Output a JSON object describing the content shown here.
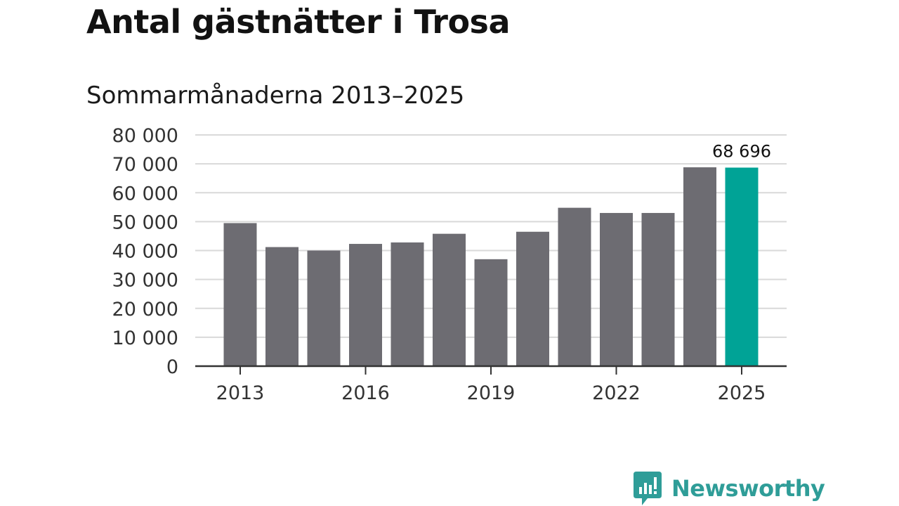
{
  "header": {
    "title": "Antal gästnätter i Trosa",
    "subtitle": "Sommarmånaderna 2013–2025"
  },
  "brand": {
    "name": "Newsworthy",
    "icon": "newsworthy-logo-icon",
    "color": "#2f9d98"
  },
  "colors": {
    "bar": "#6d6c72",
    "highlight": "#00a396",
    "grid": "#d9d9d9",
    "axis": "#333333"
  },
  "chart_data": {
    "type": "bar",
    "title": "Antal gästnätter i Trosa",
    "subtitle": "Sommarmånaderna 2013–2025",
    "categories": [
      "2013",
      "2014",
      "2015",
      "2016",
      "2017",
      "2018",
      "2019",
      "2020",
      "2021",
      "2022",
      "2023",
      "2024",
      "2025"
    ],
    "values": [
      49500,
      41200,
      40000,
      42300,
      42800,
      45800,
      37000,
      46500,
      54800,
      53000,
      53000,
      68800,
      68696
    ],
    "x_tick_labels": [
      "2013",
      "2016",
      "2019",
      "2022",
      "2025"
    ],
    "y_ticks": [
      0,
      10000,
      20000,
      30000,
      40000,
      50000,
      60000,
      70000,
      80000
    ],
    "y_tick_labels": [
      "0",
      "10 000",
      "20 000",
      "30 000",
      "40 000",
      "50 000",
      "60 000",
      "70 000",
      "80 000"
    ],
    "ylim": [
      0,
      80000
    ],
    "grid": true,
    "highlight_index": 12,
    "annotations": [
      {
        "category": "2025",
        "text": "68 696"
      }
    ],
    "xlabel": "",
    "ylabel": ""
  }
}
